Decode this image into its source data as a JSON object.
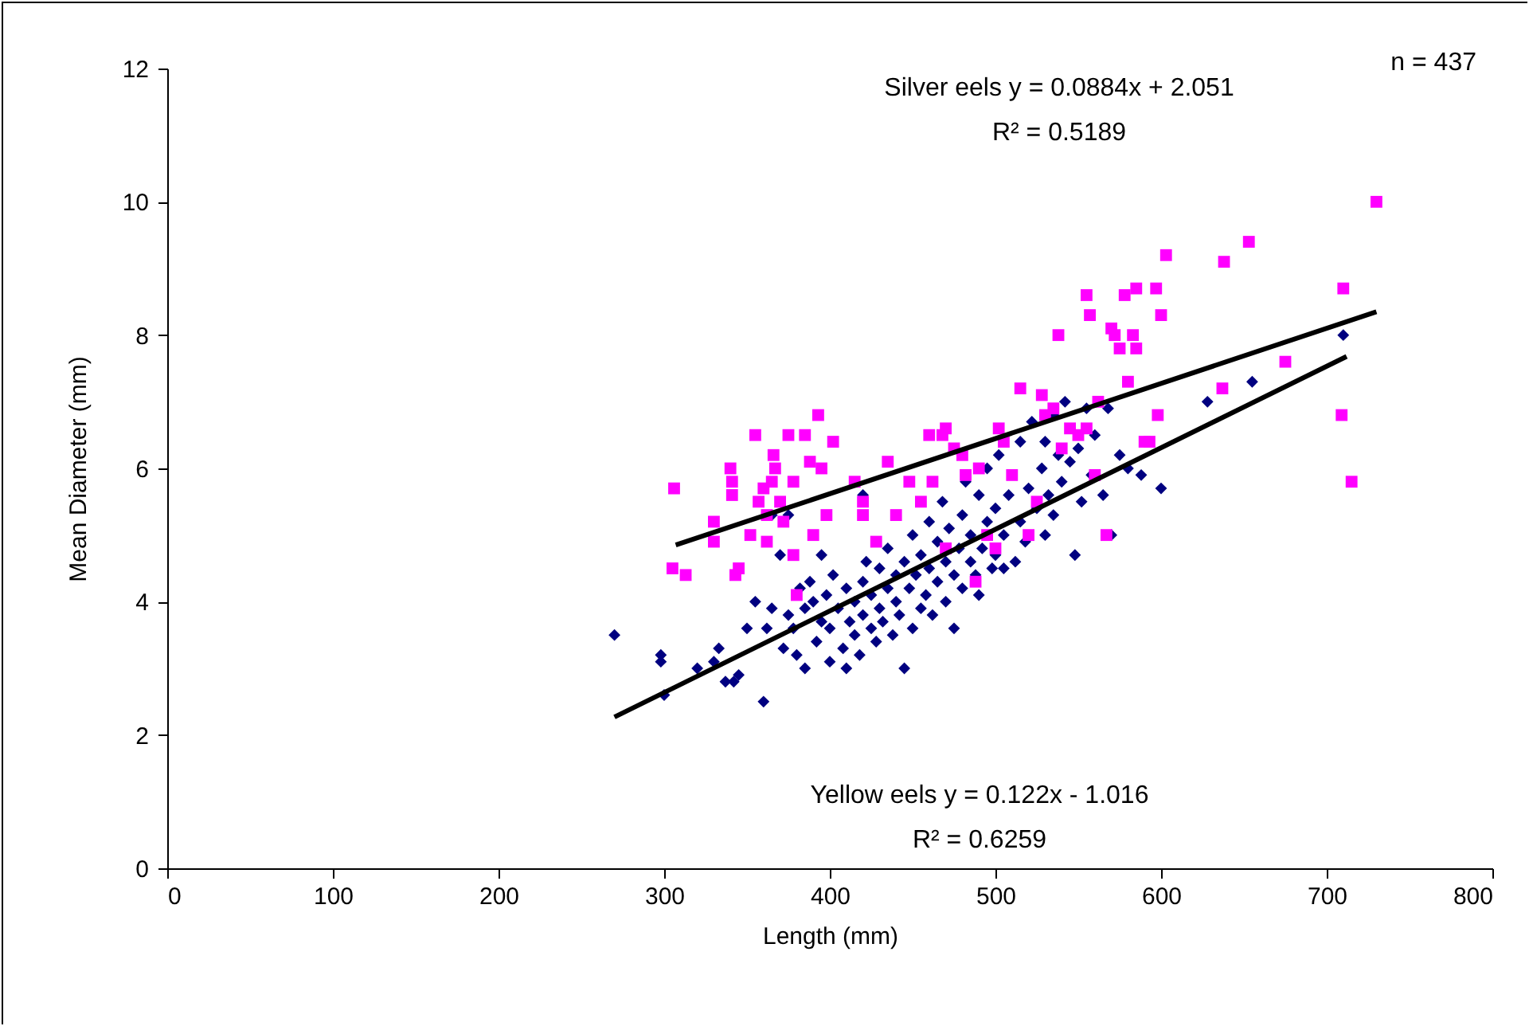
{
  "chart_data": {
    "type": "scatter",
    "xlabel": "Length (mm)",
    "ylabel": "Mean Diameter (mm)",
    "xlim": [
      0,
      800
    ],
    "xticks": [
      0,
      100,
      200,
      300,
      400,
      500,
      600,
      700,
      800
    ],
    "ylim": [
      0,
      12
    ],
    "yticks": [
      0,
      2,
      4,
      6,
      8,
      10,
      12
    ],
    "grid": false,
    "annotations": [
      "Silver eels y = 0.0884x + 2.051",
      "R² = 0.5189",
      "Yellow eels y = 0.122x - 1.016",
      "R² = 0.6259",
      "n = 437"
    ],
    "series": [
      {
        "marker": "diamond",
        "color": "#000080",
        "x": [
          270,
          298,
          298,
          300,
          320,
          330,
          333,
          337,
          342,
          345,
          350,
          355,
          360,
          362,
          365,
          370,
          372,
          375,
          378,
          380,
          382,
          385,
          385,
          388,
          390,
          392,
          395,
          398,
          400,
          400,
          402,
          405,
          408,
          410,
          410,
          412,
          415,
          415,
          418,
          420,
          420,
          422,
          425,
          425,
          428,
          430,
          430,
          432,
          435,
          435,
          438,
          440,
          440,
          442,
          445,
          445,
          448,
          450,
          450,
          452,
          455,
          455,
          458,
          460,
          460,
          462,
          465,
          465,
          468,
          470,
          470,
          472,
          475,
          475,
          478,
          480,
          480,
          482,
          485,
          485,
          488,
          490,
          490,
          492,
          495,
          495,
          498,
          500,
          500,
          502,
          505,
          505,
          508,
          512,
          515,
          515,
          518,
          520,
          522,
          525,
          528,
          530,
          530,
          532,
          535,
          535,
          538,
          540,
          542,
          545,
          548,
          550,
          552,
          555,
          558,
          560,
          565,
          568,
          570,
          575,
          580,
          588,
          600,
          628,
          655,
          710,
          395,
          365,
          420,
          375
        ],
        "values": [
          3.5,
          3.2,
          3.1,
          2.6,
          3.0,
          3.1,
          3.3,
          2.8,
          2.8,
          2.9,
          3.6,
          4.0,
          2.5,
          3.6,
          3.9,
          4.7,
          3.3,
          3.8,
          3.6,
          3.2,
          4.2,
          3.0,
          3.9,
          4.3,
          4.0,
          3.4,
          3.7,
          4.1,
          3.1,
          3.6,
          4.4,
          3.9,
          3.3,
          4.2,
          3.0,
          3.7,
          4.0,
          3.5,
          3.2,
          4.3,
          3.8,
          4.6,
          3.6,
          4.1,
          3.4,
          3.9,
          4.5,
          3.7,
          4.2,
          4.8,
          3.5,
          4.0,
          4.4,
          3.8,
          3.0,
          4.6,
          4.2,
          3.6,
          5.0,
          4.4,
          3.9,
          4.7,
          4.1,
          5.2,
          4.5,
          3.8,
          4.3,
          4.9,
          5.5,
          4.0,
          4.6,
          5.1,
          4.4,
          3.6,
          4.8,
          5.3,
          4.2,
          5.8,
          4.6,
          5.0,
          4.4,
          5.6,
          4.1,
          4.8,
          5.2,
          6.0,
          4.5,
          5.4,
          4.7,
          6.2,
          5.0,
          4.5,
          5.6,
          4.6,
          6.4,
          5.2,
          4.9,
          5.7,
          6.7,
          5.4,
          6.0,
          5.0,
          6.4,
          5.6,
          6.8,
          5.3,
          6.2,
          5.8,
          7.0,
          6.1,
          4.7,
          6.3,
          5.5,
          6.9,
          5.9,
          6.5,
          5.6,
          6.9,
          5.0,
          6.2,
          6.0,
          5.9,
          5.7,
          7.0,
          7.3,
          8.0,
          4.7,
          5.3,
          5.6,
          5.3
        ]
      },
      {
        "marker": "square",
        "color": "#ff00ff",
        "x": [
          306,
          305,
          313,
          330,
          330,
          340,
          341,
          341,
          343,
          345,
          352,
          355,
          357,
          360,
          362,
          362,
          365,
          366,
          367,
          370,
          372,
          375,
          378,
          378,
          380,
          385,
          388,
          390,
          393,
          395,
          398,
          402,
          415,
          420,
          420,
          428,
          435,
          440,
          448,
          455,
          460,
          462,
          468,
          470,
          470,
          475,
          480,
          482,
          488,
          490,
          495,
          500,
          502,
          505,
          510,
          515,
          520,
          525,
          528,
          530,
          535,
          538,
          540,
          545,
          550,
          555,
          555,
          557,
          560,
          562,
          567,
          570,
          572,
          575,
          578,
          580,
          583,
          585,
          585,
          590,
          593,
          597,
          598,
          600,
          603,
          637,
          638,
          653,
          675,
          709,
          710,
          715,
          730
        ],
        "values": [
          5.7,
          4.5,
          4.4,
          5.2,
          4.9,
          6.0,
          5.8,
          5.6,
          4.4,
          4.5,
          5.0,
          6.5,
          5.5,
          5.7,
          5.3,
          4.9,
          5.8,
          6.2,
          6.0,
          5.5,
          5.2,
          6.5,
          5.8,
          4.7,
          4.1,
          6.5,
          6.1,
          5.0,
          6.8,
          6.0,
          5.3,
          6.4,
          5.8,
          5.5,
          5.3,
          4.9,
          6.1,
          5.3,
          5.8,
          5.5,
          6.5,
          5.8,
          6.5,
          6.6,
          4.8,
          6.3,
          6.2,
          5.9,
          4.3,
          6.0,
          5.0,
          4.8,
          6.6,
          6.4,
          5.9,
          7.2,
          5.0,
          5.5,
          7.1,
          6.8,
          6.9,
          8.0,
          6.3,
          6.6,
          6.5,
          8.6,
          6.6,
          8.3,
          5.9,
          7.0,
          5.0,
          8.1,
          8.0,
          7.8,
          8.6,
          7.3,
          8.0,
          8.7,
          7.8,
          6.4,
          6.4,
          8.7,
          6.8,
          8.3,
          9.2,
          7.2,
          9.1,
          9.4,
          7.6,
          6.8,
          8.7,
          5.8,
          10.0
        ]
      },
      {
        "type": "line",
        "color": "#000000",
        "x": [
          307,
          730
        ],
        "values": [
          4.85,
          8.35
        ]
      },
      {
        "type": "line",
        "color": "#000000",
        "x": [
          270,
          712
        ],
        "values": [
          2.27,
          7.68
        ]
      }
    ]
  }
}
